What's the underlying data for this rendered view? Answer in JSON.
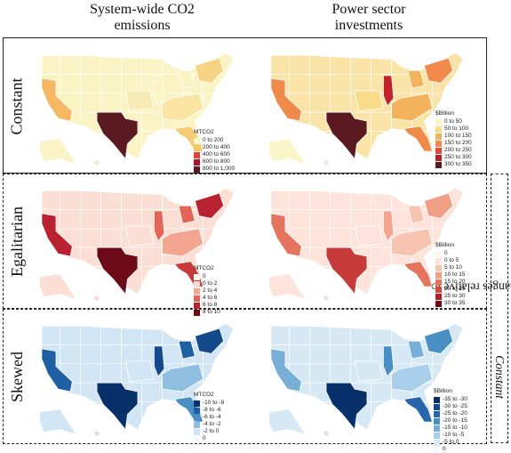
{
  "columns": [
    "System-wide CO2\nemissions",
    "Power sector\ninvestments"
  ],
  "rows": [
    {
      "label": "Constant"
    },
    {
      "label": "Egalitarian"
    },
    {
      "label": "Skewed"
    }
  ],
  "side_label": {
    "prefix": "Absolute changes relative to ",
    "emphasis": "Constant"
  },
  "legends": [
    {
      "title": "MTCO2",
      "items": [
        {
          "label": "0 to 200",
          "color": "#fbf6c8"
        },
        {
          "label": "200 to 400",
          "color": "#f6c467"
        },
        {
          "label": "400 to 600",
          "color": "#e4433a"
        },
        {
          "label": "600 to 800",
          "color": "#a7142e"
        },
        {
          "label": "800 to 1,000",
          "color": "#5a1a1f"
        }
      ]
    },
    {
      "title": "$Billion",
      "items": [
        {
          "label": "0 to 50",
          "color": "#fbf6c8"
        },
        {
          "label": "50 to 100",
          "color": "#f8dc8a"
        },
        {
          "label": "100 to 150",
          "color": "#f3b35c"
        },
        {
          "label": "150 to 200",
          "color": "#ef8a4b"
        },
        {
          "label": "200 to 250",
          "color": "#e04a32"
        },
        {
          "label": "250 to 300",
          "color": "#b61f26"
        },
        {
          "label": "300 to 350",
          "color": "#5a1a1f"
        }
      ]
    },
    {
      "title": "MTCO2",
      "items": [
        {
          "label": "0",
          "color": "#fff6f2"
        },
        {
          "label": "0 to 2",
          "color": "#fadbd2"
        },
        {
          "label": "2 to 4",
          "color": "#f3a58f"
        },
        {
          "label": "4 to 6",
          "color": "#e36556"
        },
        {
          "label": "6 to 8",
          "color": "#b82231"
        },
        {
          "label": "8 to 10",
          "color": "#6c0b17"
        }
      ]
    },
    {
      "title": "$Billion",
      "items": [
        {
          "label": "0",
          "color": "#fff6f2"
        },
        {
          "label": "0 to 5",
          "color": "#fde3da"
        },
        {
          "label": "5 to 10",
          "color": "#f8c4b2"
        },
        {
          "label": "10 to 15",
          "color": "#f09e84"
        },
        {
          "label": "15 to 20",
          "color": "#e5745e"
        },
        {
          "label": "20 to 25",
          "color": "#d1493e"
        },
        {
          "label": "25 to 30",
          "color": "#ae202a"
        },
        {
          "label": "30 to 35",
          "color": "#6c0b17"
        }
      ]
    },
    {
      "title": "MTCO2",
      "items": [
        {
          "label": "-10 to -8",
          "color": "#08306b"
        },
        {
          "label": "-8 to -6",
          "color": "#1f5fa3"
        },
        {
          "label": "-6 to -4",
          "color": "#4a8fc4"
        },
        {
          "label": "-4 to -2",
          "color": "#8fbfe0"
        },
        {
          "label": "-2 to 0",
          "color": "#d2e5f4"
        },
        {
          "label": "0",
          "color": "#f5f9fd"
        }
      ]
    },
    {
      "title": "$Billion",
      "items": [
        {
          "label": "-35 to -30",
          "color": "#08306b"
        },
        {
          "label": "-30 to -25",
          "color": "#14498c"
        },
        {
          "label": "-25 to -20",
          "color": "#2766aa"
        },
        {
          "label": "-20 to -15",
          "color": "#4a8fc4"
        },
        {
          "label": "-15 to -10",
          "color": "#78afd8"
        },
        {
          "label": "-10 to -5",
          "color": "#aacfea"
        },
        {
          "label": "-5 to 0",
          "color": "#d7e8f5"
        },
        {
          "label": "0",
          "color": "#f5f9fd"
        }
      ]
    }
  ],
  "maps": [
    {
      "base": "#faf4c4",
      "tx": "#5a1a1f",
      "ca": "#f4b862",
      "fl": "#f6cb75",
      "il": "#faf4c4",
      "ne": "#f6d383",
      "east": "#f9e4a3",
      "mid": "#f9ebb6",
      "ne_extra": "#faf4c4",
      "ak": "#faf4c4"
    },
    {
      "base": "#f9e3a6",
      "tx": "#5a1a1f",
      "ca": "#ef8a4b",
      "fl": "#ef8a4b",
      "il": "#c1232a",
      "ne": "#ef8a4b",
      "east": "#f3b35c",
      "mid": "#f8dc8a",
      "ne_extra": "#f3b35c",
      "ak": "#fbf6c8"
    },
    {
      "base": "#fbdfd4",
      "tx": "#6c0b17",
      "ca": "#b82231",
      "fl": "#c73a3a",
      "il": "#e36556",
      "ne": "#b82231",
      "east": "#f3a58f",
      "mid": "#fbdfd4",
      "ne_extra": "#e36556",
      "ak": "#fbdfd4"
    },
    {
      "base": "#fde3da",
      "tx": "#c73a3a",
      "ca": "#e5745e",
      "fl": "#e5745e",
      "il": "#f3a58f",
      "ne": "#f09e84",
      "east": "#f8c4b2",
      "mid": "#fde3da",
      "ne_extra": "#f8c4b2",
      "ak": "#fde3da"
    },
    {
      "base": "#d2e5f4",
      "tx": "#08306b",
      "ca": "#1f5fa3",
      "fl": "#4a8fc4",
      "il": "#14498c",
      "ne": "#14498c",
      "east": "#8fbfe0",
      "mid": "#d2e5f4",
      "ne_extra": "#1f5fa3",
      "ak": "#d2e5f4"
    },
    {
      "base": "#d7e8f5",
      "tx": "#08306b",
      "ca": "#78afd8",
      "fl": "#2766aa",
      "il": "#4a8fc4",
      "ne": "#4a8fc4",
      "east": "#aacfea",
      "mid": "#d7e8f5",
      "ne_extra": "#78afd8",
      "ak": "#d7e8f5"
    }
  ]
}
